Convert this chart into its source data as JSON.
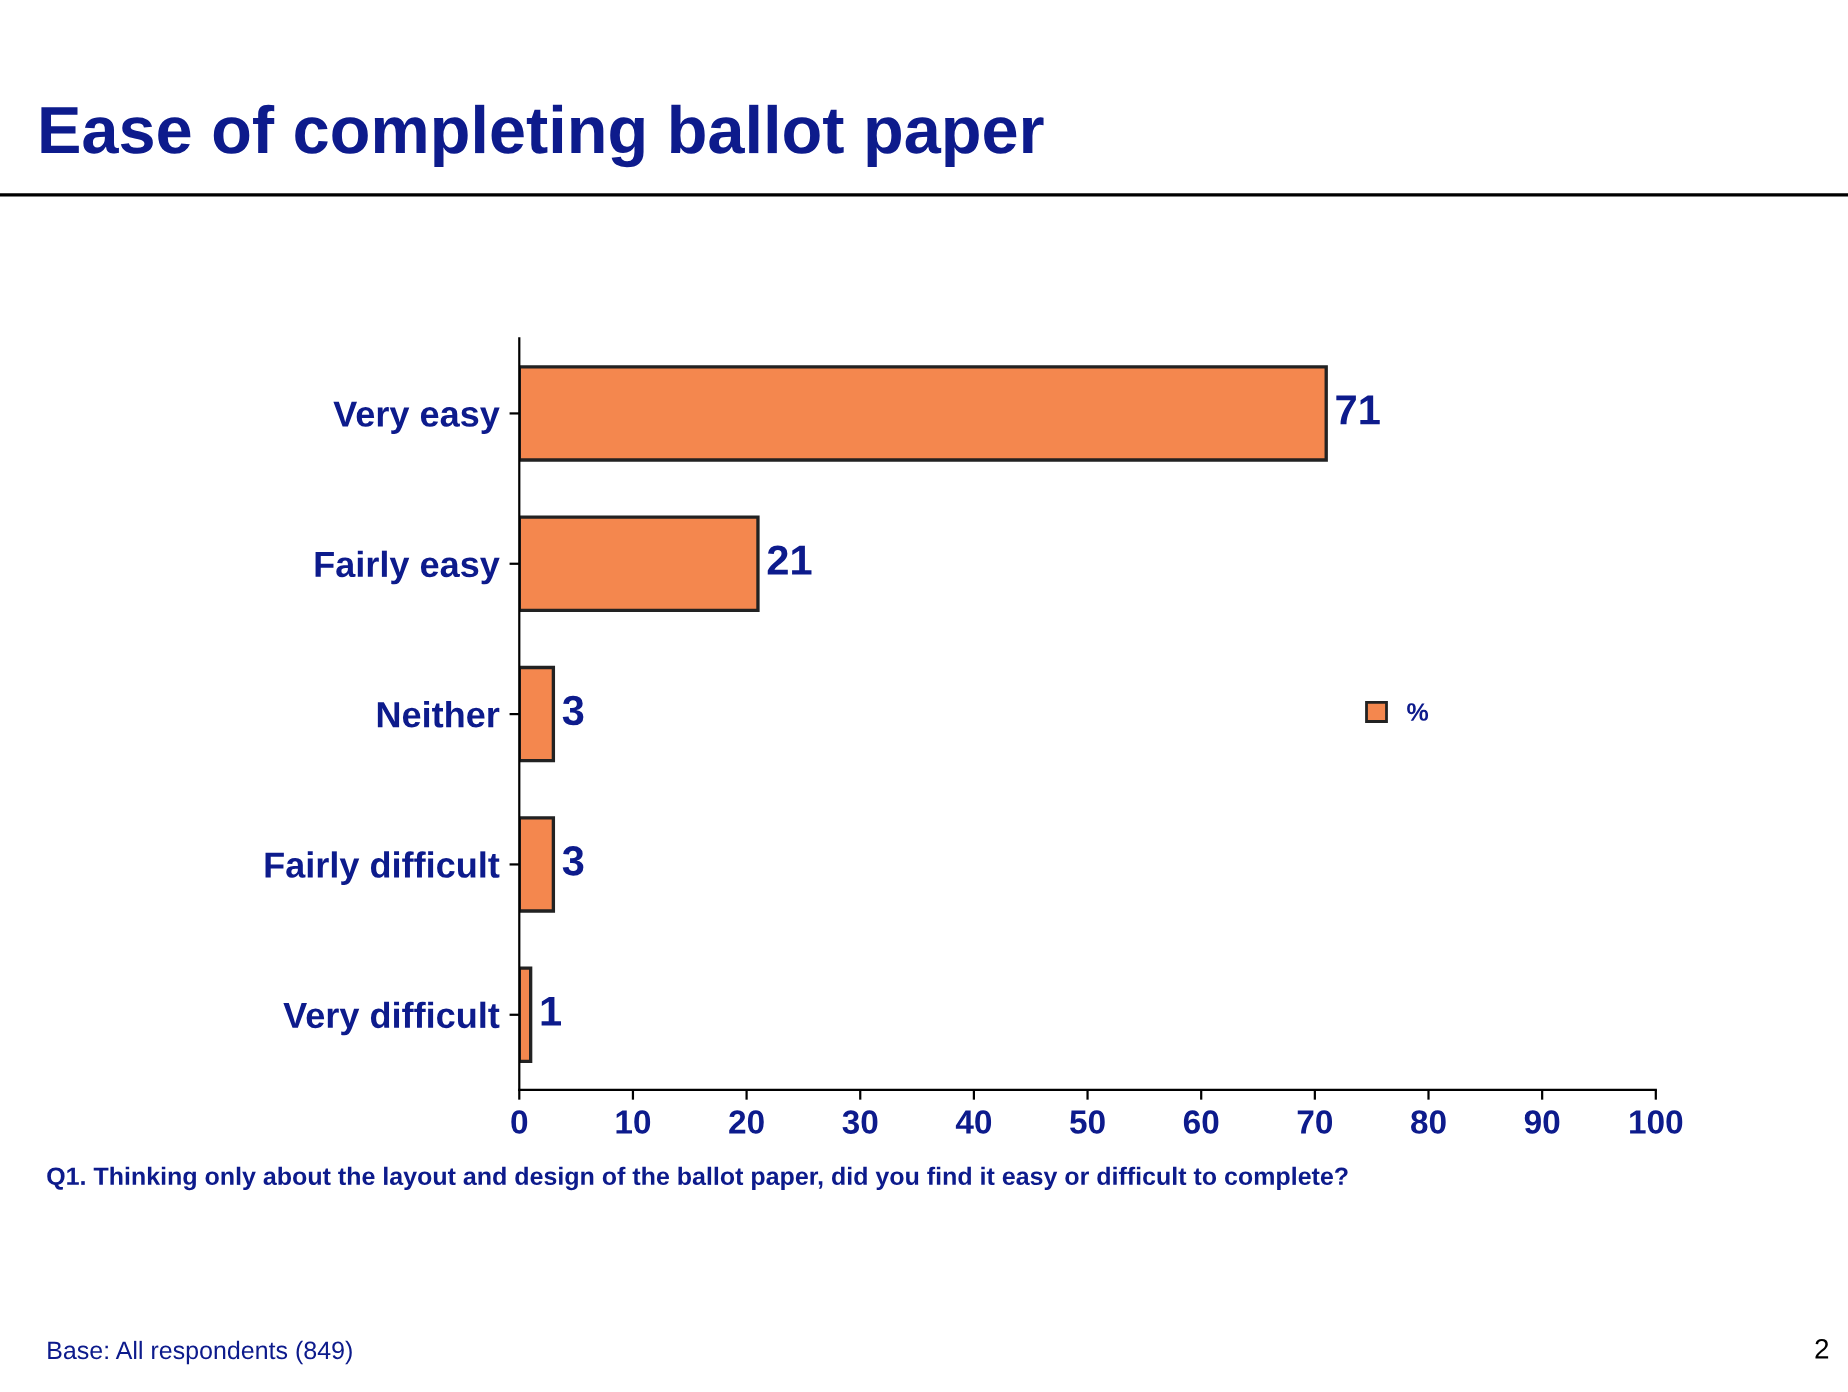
{
  "chart_data": {
    "type": "bar",
    "orientation": "horizontal",
    "title": "Ease of completing ballot paper",
    "categories": [
      "Very easy",
      "Fairly easy",
      "Neither",
      "Fairly difficult",
      "Very difficult"
    ],
    "series": [
      {
        "name": "%",
        "color": "#f4874e",
        "values": [
          71,
          21,
          3,
          3,
          1
        ]
      }
    ],
    "xlim": [
      0,
      100
    ],
    "xticks": [
      0,
      10,
      20,
      30,
      40,
      50,
      60,
      70,
      80,
      90,
      100
    ],
    "data_labels": true,
    "legend": "right",
    "grid": false,
    "annotations": [
      "Q1. Thinking only about the layout and design of the ballot paper, did you find it easy or difficult to complete?",
      "Base: All respondents (849)",
      "2"
    ]
  }
}
